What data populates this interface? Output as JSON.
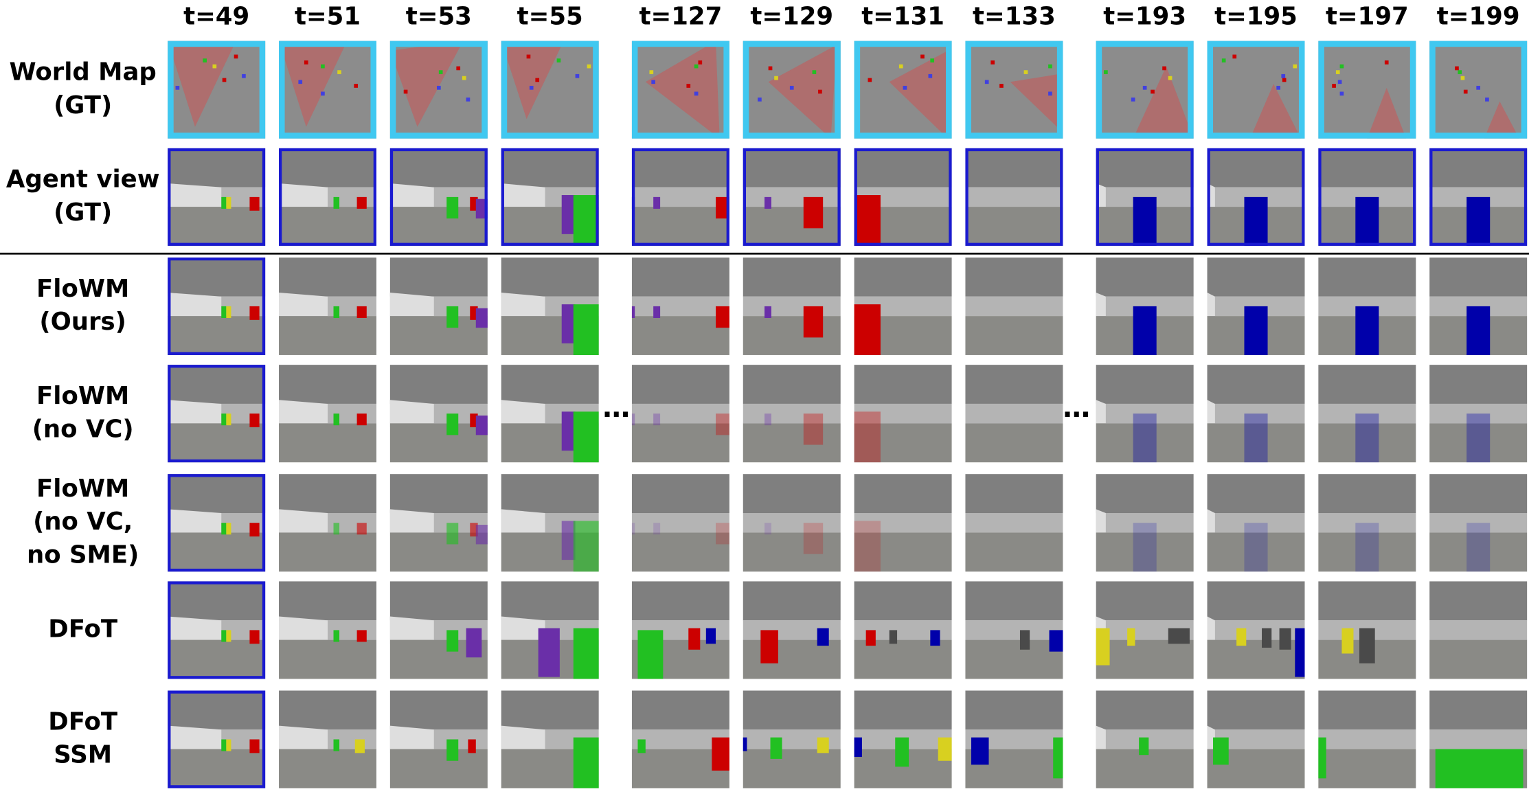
{
  "columns": [
    "t=49",
    "t=51",
    "t=53",
    "t=55",
    "t=127",
    "t=129",
    "t=131",
    "t=133",
    "t=193",
    "t=195",
    "t=197",
    "t=199"
  ],
  "rows": [
    {
      "label": [
        "World Map",
        "(GT)"
      ]
    },
    {
      "label": [
        "Agent view",
        "(GT)"
      ]
    },
    {
      "label": [
        "FloWM",
        "(Ours)"
      ]
    },
    {
      "label": [
        "FloWM",
        "(no VC)"
      ]
    },
    {
      "label": [
        "FloWM",
        "(no VC,",
        "no SME)"
      ]
    },
    {
      "label": [
        "DFoT"
      ]
    },
    {
      "label": [
        "DFoT",
        "SSM"
      ]
    }
  ],
  "ellipses": [
    "…",
    "…"
  ]
}
